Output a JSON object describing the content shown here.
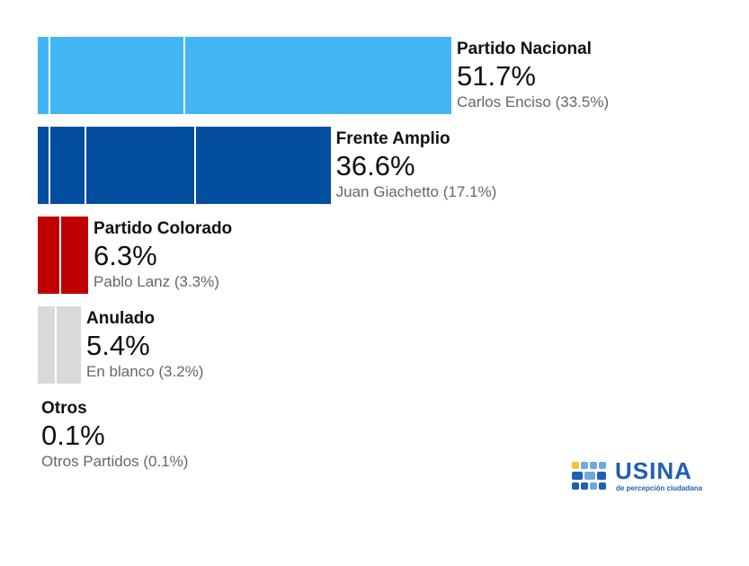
{
  "chart_data": {
    "type": "bar",
    "orientation": "horizontal",
    "title": "",
    "xlabel": "",
    "ylabel": "",
    "categories": [
      "Partido Nacional",
      "Frente Amplio",
      "Partido Colorado",
      "Anulado",
      "Otros"
    ],
    "values": [
      51.7,
      36.6,
      6.3,
      5.4,
      0.1
    ],
    "value_labels": [
      "51.7%",
      "36.6%",
      "6.3%",
      "5.4%",
      "0.1%"
    ],
    "sub_labels": [
      "Carlos Enciso (33.5%)",
      "Juan Giachetto (17.1%)",
      "Pablo Lanz (3.3%)",
      "En blanco (3.2%)",
      "Otros Partidos (0.1%)"
    ],
    "segment_breaks": [
      [
        1.4,
        18.2
      ],
      [
        1.4,
        5.8,
        19.5
      ],
      [
        2.7
      ],
      [
        2.1
      ],
      []
    ],
    "colors": [
      "#42b6f5",
      "#034e9e",
      "#c00000",
      "#d9d9d9",
      "#d9d9d9"
    ],
    "xlim": [
      0,
      51.7
    ]
  },
  "logo": {
    "word": "USINA",
    "tagline": "de percepción ciudadana",
    "colors": [
      "#1f5fb4",
      "#6fa8e0",
      "#f4c430"
    ]
  }
}
